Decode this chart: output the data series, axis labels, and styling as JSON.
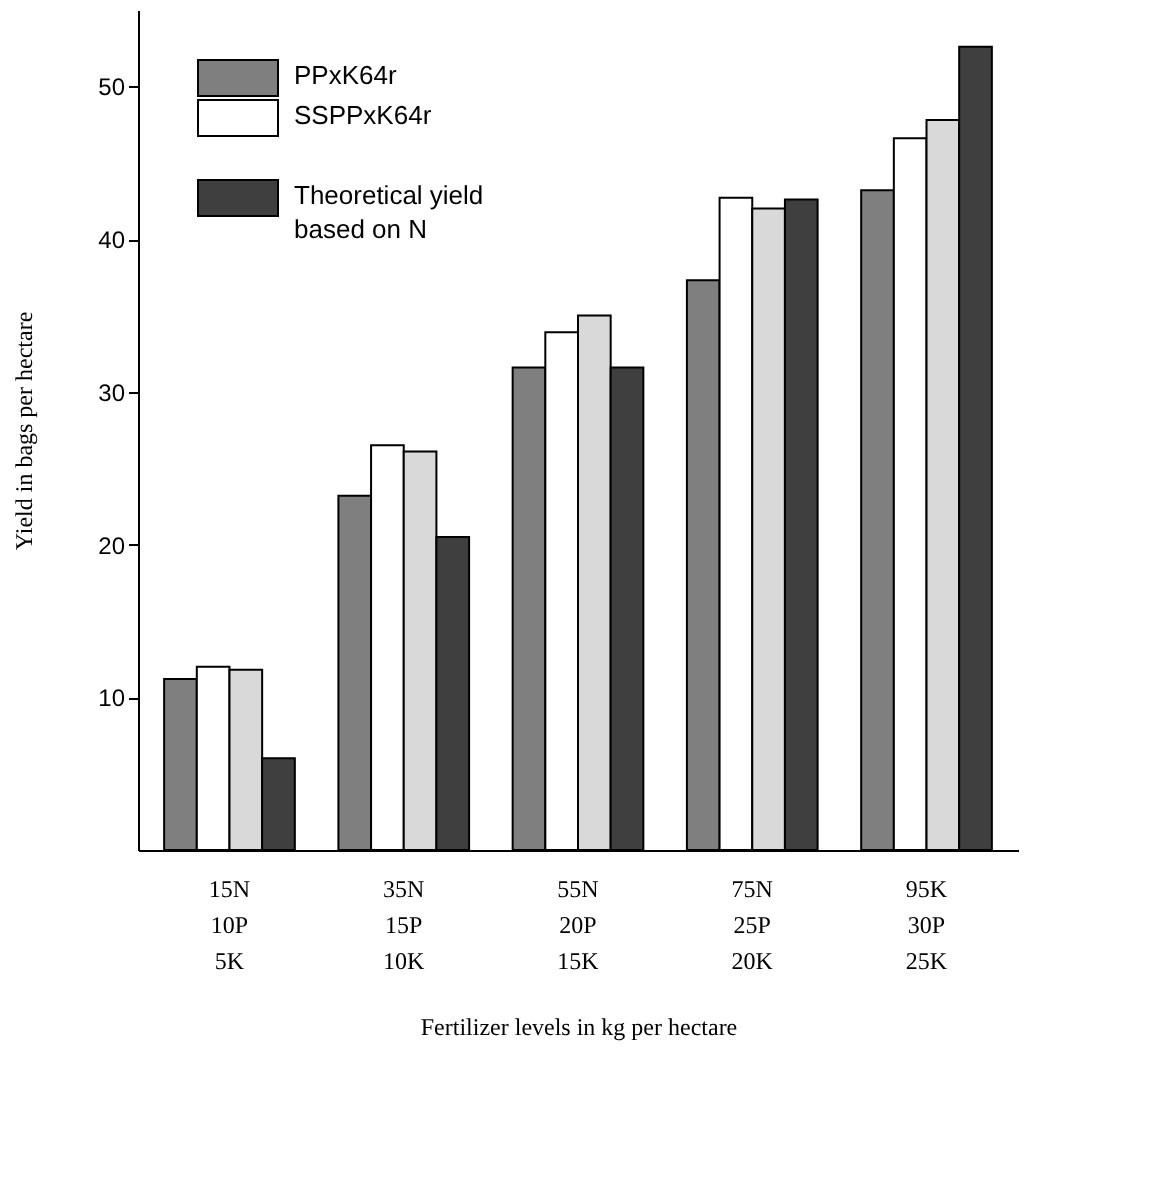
{
  "chart_data": {
    "type": "bar",
    "xlabel": "Fertilizer levels in kg per hectare",
    "ylabel": "Yield in bags per hectare",
    "categories": [
      "15N\n10P\n5K",
      "35N\n15P\n10K",
      "55N\n20P\n15K",
      "75N\n25P\n20K",
      "95K\n30P\n25K"
    ],
    "series": [
      {
        "name": "PPxK64r",
        "color": "#7f7f7f",
        "values": [
          11.2,
          23.2,
          31.6,
          37.3,
          43.2
        ]
      },
      {
        "name": "SSPPxK64r",
        "color": "#ffffff",
        "values": [
          12.0,
          26.5,
          33.9,
          42.7,
          46.6
        ]
      },
      {
        "color": "#d9d9d9",
        "values": [
          11.8,
          26.1,
          35.0,
          42.0,
          47.8
        ]
      },
      {
        "name": "Theoretical yield\nbased on N",
        "color": "#3f3f3f",
        "values": [
          6.0,
          20.5,
          31.6,
          42.6,
          52.6
        ]
      }
    ],
    "ylim": [
      0,
      55
    ],
    "yticks": [
      10,
      20,
      30,
      40,
      50
    ],
    "grid": false,
    "legend": "top left"
  }
}
